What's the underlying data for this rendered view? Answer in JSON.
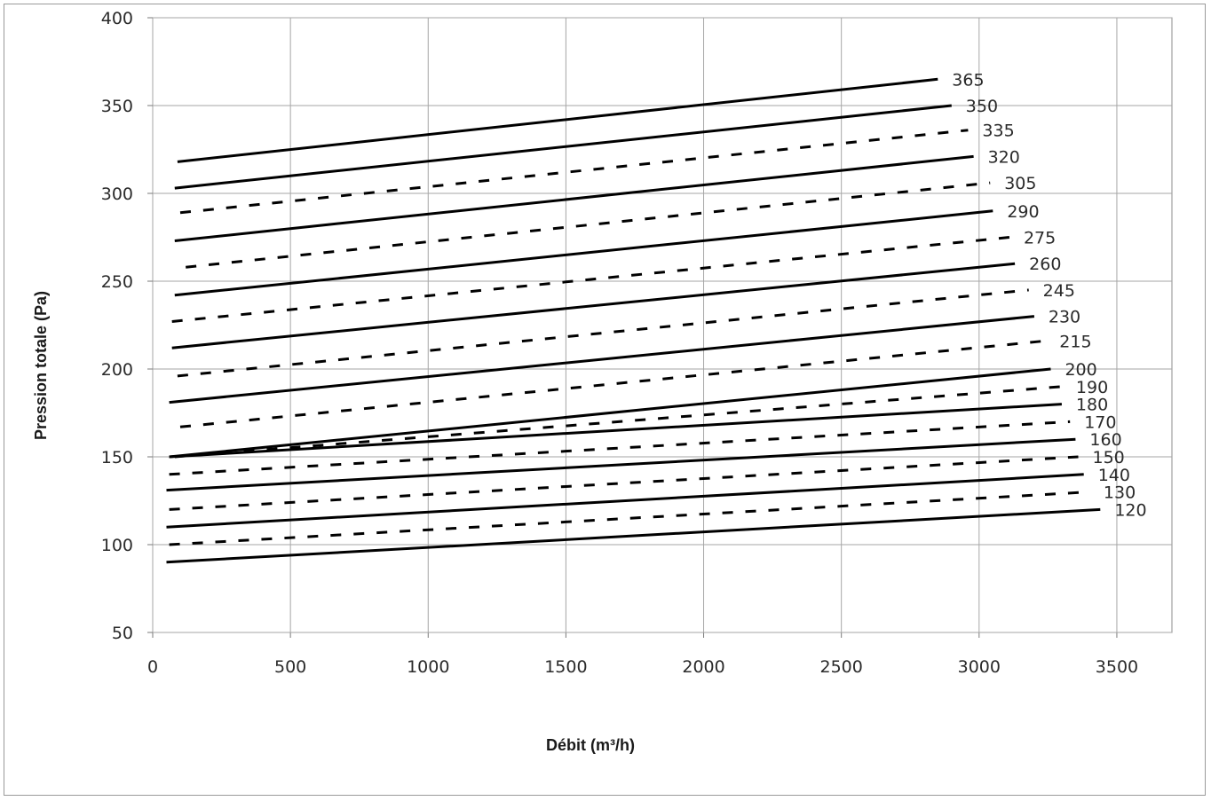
{
  "chart_data": {
    "type": "line",
    "xlabel": "Débit (m³/h)",
    "ylabel": "Pression totale  (Pa)",
    "xlim": [
      0,
      3700
    ],
    "ylim": [
      50,
      400
    ],
    "xticks": [
      0,
      500,
      1000,
      1500,
      2000,
      2500,
      3000,
      3500
    ],
    "yticks": [
      50,
      100,
      150,
      200,
      250,
      300,
      350,
      400
    ],
    "grid": true,
    "line_color": "#000000",
    "grid_color": "#a6a6a6",
    "series": [
      {
        "name": "365",
        "style": "solid",
        "x": [
          90,
          2850
        ],
        "y": [
          318,
          365
        ]
      },
      {
        "name": "350",
        "style": "solid",
        "x": [
          80,
          2900
        ],
        "y": [
          303,
          350
        ]
      },
      {
        "name": "335",
        "style": "dashed",
        "x": [
          100,
          2960
        ],
        "y": [
          289,
          336
        ]
      },
      {
        "name": "320",
        "style": "solid",
        "x": [
          80,
          2980
        ],
        "y": [
          273,
          321
        ]
      },
      {
        "name": "305",
        "style": "dashed",
        "x": [
          120,
          3040
        ],
        "y": [
          258,
          306
        ]
      },
      {
        "name": "290",
        "style": "solid",
        "x": [
          80,
          3050
        ],
        "y": [
          242,
          290
        ]
      },
      {
        "name": "275",
        "style": "dashed",
        "x": [
          70,
          3110
        ],
        "y": [
          227,
          275
        ]
      },
      {
        "name": "260",
        "style": "solid",
        "x": [
          70,
          3130
        ],
        "y": [
          212,
          260
        ]
      },
      {
        "name": "245",
        "style": "dashed",
        "x": [
          90,
          3180
        ],
        "y": [
          196,
          245
        ]
      },
      {
        "name": "230",
        "style": "solid",
        "x": [
          60,
          3200
        ],
        "y": [
          181,
          230
        ]
      },
      {
        "name": "215",
        "style": "dashed",
        "x": [
          100,
          3240
        ],
        "y": [
          167,
          216
        ]
      },
      {
        "name": "200",
        "style": "solid",
        "x": [
          60,
          3260
        ],
        "y": [
          150,
          200
        ]
      },
      {
        "name": "190",
        "style": "dashed",
        "x": [
          80,
          3300
        ],
        "y": [
          150,
          190
        ]
      },
      {
        "name": "180",
        "style": "solid",
        "x": [
          60,
          3300
        ],
        "y": [
          150,
          180
        ]
      },
      {
        "name": "170",
        "style": "dashed",
        "x": [
          60,
          3330
        ],
        "y": [
          140,
          170
        ]
      },
      {
        "name": "160",
        "style": "solid",
        "x": [
          50,
          3350
        ],
        "y": [
          131,
          160
        ]
      },
      {
        "name": "150",
        "style": "dashed",
        "x": [
          60,
          3360
        ],
        "y": [
          120,
          150
        ]
      },
      {
        "name": "140",
        "style": "solid",
        "x": [
          50,
          3380
        ],
        "y": [
          110,
          140
        ]
      },
      {
        "name": "130",
        "style": "dashed",
        "x": [
          60,
          3400
        ],
        "y": [
          100,
          130
        ]
      },
      {
        "name": "120",
        "style": "solid",
        "x": [
          50,
          3440
        ],
        "y": [
          90,
          120
        ]
      }
    ]
  }
}
